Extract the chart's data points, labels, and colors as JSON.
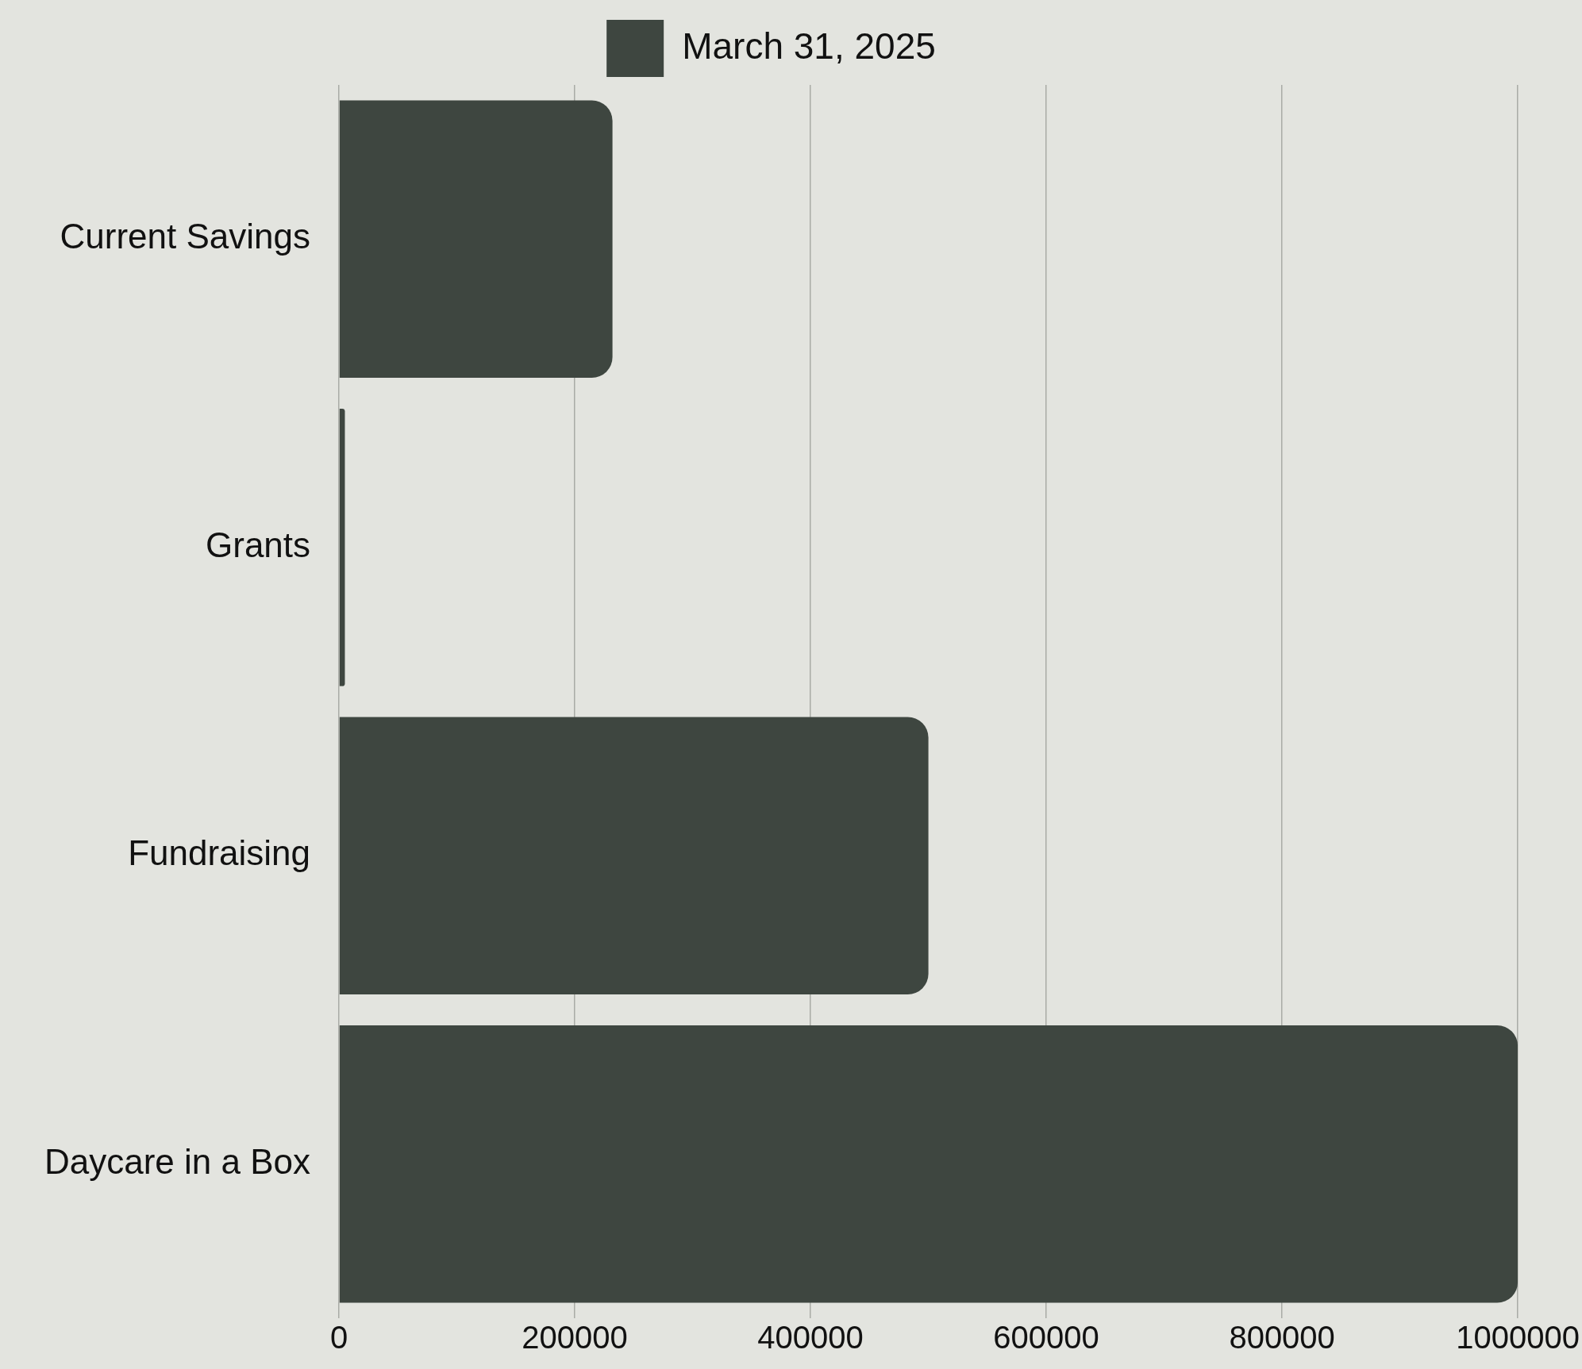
{
  "chart_data": {
    "type": "bar",
    "orientation": "horizontal",
    "categories": [
      "Current Savings",
      "Grants",
      "Fundraising",
      "Daycare in a Box"
    ],
    "series": [
      {
        "name": "March 31, 2025",
        "color": "#3e4640",
        "values": [
          232000,
          5000,
          500000,
          1000000
        ]
      }
    ],
    "xlim": [
      0,
      1000000
    ],
    "xticks": [
      0,
      200000,
      400000,
      600000,
      800000,
      1000000
    ],
    "grid": "x",
    "legend": "top"
  }
}
